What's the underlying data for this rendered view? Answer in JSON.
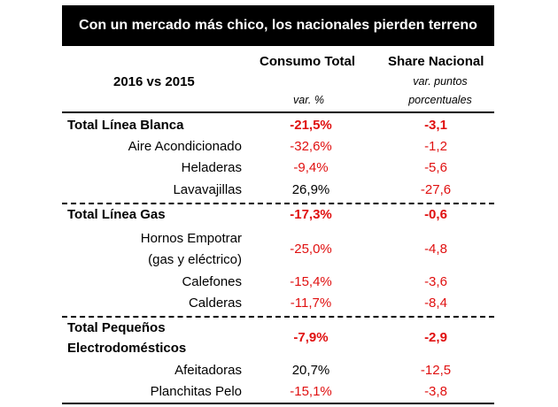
{
  "title": "Con un mercado más chico, los nacionales pierden terreno",
  "header": {
    "period": "2016 vs 2015",
    "col1": "Consumo Total",
    "col1_sub": "var. %",
    "col2": "Share Nacional",
    "col2_sub_line1": "var. puntos",
    "col2_sub_line2": "porcentuales"
  },
  "chart_data": {
    "type": "table",
    "columns": [
      "Consumo Total var. %",
      "Share Nacional var. puntos porcentuales"
    ],
    "rows": [
      {
        "label": "Total Línea Blanca",
        "total": true,
        "consumo": "-21,5%",
        "share": "-3,1"
      },
      {
        "label": "Aire Acondicionado",
        "total": false,
        "consumo": "-32,6%",
        "share": "-1,2"
      },
      {
        "label": "Heladeras",
        "total": false,
        "consumo": "-9,4%",
        "share": "-5,6"
      },
      {
        "label": "Lavavajillas",
        "total": false,
        "consumo": "26,9%",
        "share": "-27,6"
      },
      {
        "label": "Total Línea Gas",
        "total": true,
        "consumo": "-17,3%",
        "share": "-0,6"
      },
      {
        "label": "Hornos Empotrar (gas y eléctrico)",
        "total": false,
        "consumo": "-25,0%",
        "share": "-4,8"
      },
      {
        "label": "Calefones",
        "total": false,
        "consumo": "-15,4%",
        "share": "-3,6"
      },
      {
        "label": "Calderas",
        "total": false,
        "consumo": "-11,7%",
        "share": "-8,4"
      },
      {
        "label": "Total Pequeños Electrodomésticos",
        "total": true,
        "consumo": "-7,9%",
        "share": "-2,9"
      },
      {
        "label": "Afeitadoras",
        "total": false,
        "consumo": "20,7%",
        "share": "-12,5"
      },
      {
        "label": "Planchitas Pelo",
        "total": false,
        "consumo": "-15,1%",
        "share": "-3,8"
      }
    ],
    "row_label_lines": {
      "hornos_line1": "Hornos Empotrar",
      "hornos_line2": "(gas y eléctrico)",
      "peq_line1": "Total Pequeños",
      "peq_line2": "Electrodomésticos"
    },
    "colors": {
      "negative": "#e01010",
      "positive": "#000000",
      "title_bg": "#000000"
    }
  }
}
